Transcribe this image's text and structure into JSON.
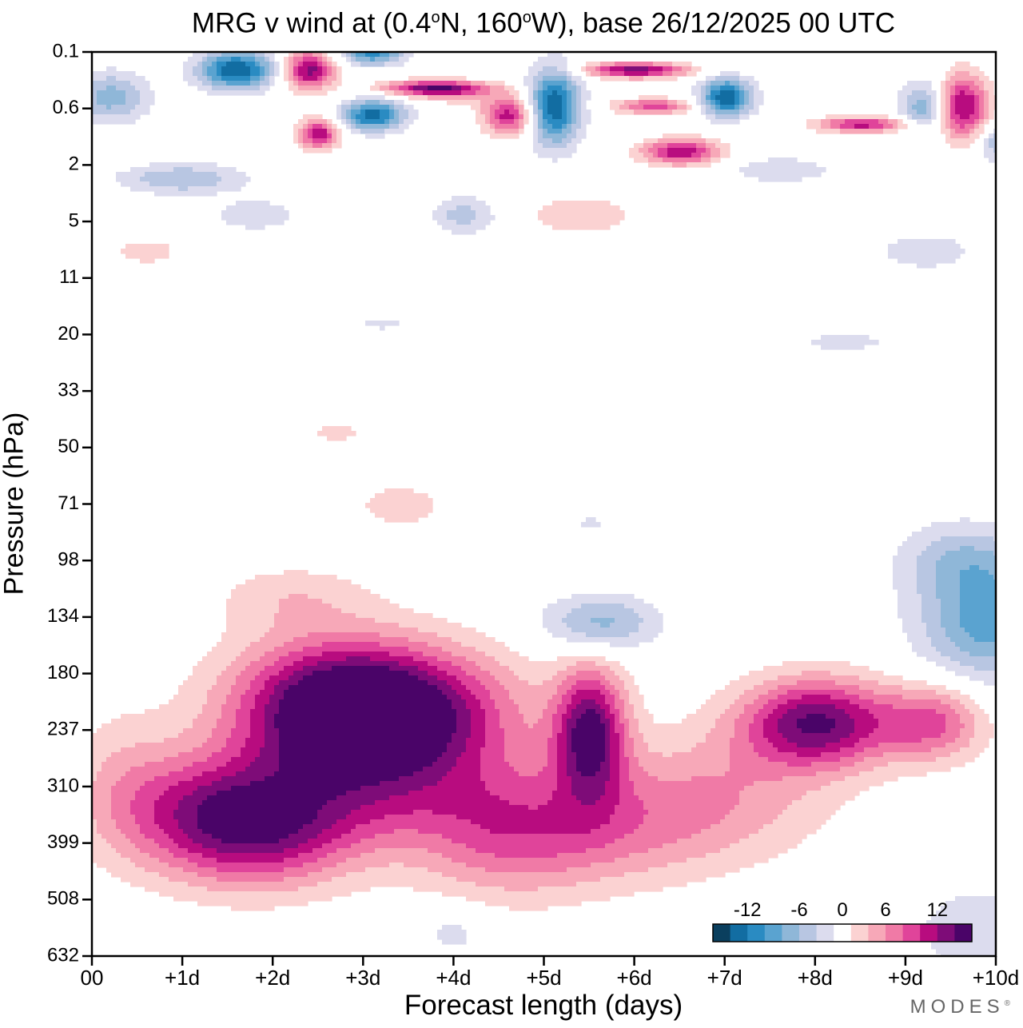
{
  "chart_data": {
    "type": "heatmap",
    "title": "MRG v wind at (0.4°N, 160°W),  base 26/12/2025  00 UTC",
    "title_parts": {
      "pre": "MRG v wind at (0.4",
      "deg1": "o",
      "mid": "N, 160",
      "deg2": "o",
      "post": "W),  base 26/12/2025  00 UTC"
    },
    "xlabel": "Forecast length (days)",
    "ylabel": "Pressure (hPa)",
    "x_ticks": [
      "00",
      "+1d",
      "+2d",
      "+3d",
      "+4d",
      "+5d",
      "+6d",
      "+7d",
      "+8d",
      "+9d",
      "+10d"
    ],
    "y_ticks": [
      "0.1",
      "0.6",
      "2",
      "5",
      "11",
      "20",
      "33",
      "50",
      "71",
      "98",
      "134",
      "180",
      "237",
      "310",
      "399",
      "508",
      "632"
    ],
    "xlim_days": [
      0,
      10
    ],
    "colorbar": {
      "labels": [
        "-12",
        "-6",
        "0",
        "6",
        "12"
      ],
      "levels": [
        -14,
        -12,
        -10,
        -8,
        -6,
        -4,
        -2,
        2,
        4,
        6,
        8,
        10,
        12,
        14
      ],
      "colors": [
        "#0a3f5e",
        "#126da2",
        "#2a8bc2",
        "#5aa3d0",
        "#8fb7d8",
        "#b8c6e2",
        "#dcdcee",
        "#ffffff",
        "#fbd2d2",
        "#f7a8b8",
        "#f07aa6",
        "#e0449a",
        "#b80c7f",
        "#7e0c78",
        "#4a0468"
      ]
    },
    "features": [
      {
        "name": "upper-jet-max",
        "sign": "positive",
        "peak": 14,
        "day": 3.3,
        "level_hPa": 200
      },
      {
        "name": "mid-positive-lobe",
        "sign": "positive",
        "peak": 13,
        "day": 1.7,
        "level_hPa": 380
      },
      {
        "name": "day-5.5-cell",
        "sign": "positive",
        "peak": 13,
        "day": 5.5,
        "level_hPa": 230
      },
      {
        "name": "day-8-cell",
        "sign": "positive",
        "peak": 14,
        "day": 8.0,
        "level_hPa": 235
      },
      {
        "name": "easterly-pocket",
        "sign": "negative",
        "peak": -7,
        "day": 5.6,
        "level_hPa": 135
      },
      {
        "name": "right-edge-negative",
        "sign": "negative",
        "peak": -9,
        "day": 9.8,
        "level_hPa": 135
      }
    ]
  },
  "brand": {
    "text": "MODES",
    "mark": "®"
  }
}
